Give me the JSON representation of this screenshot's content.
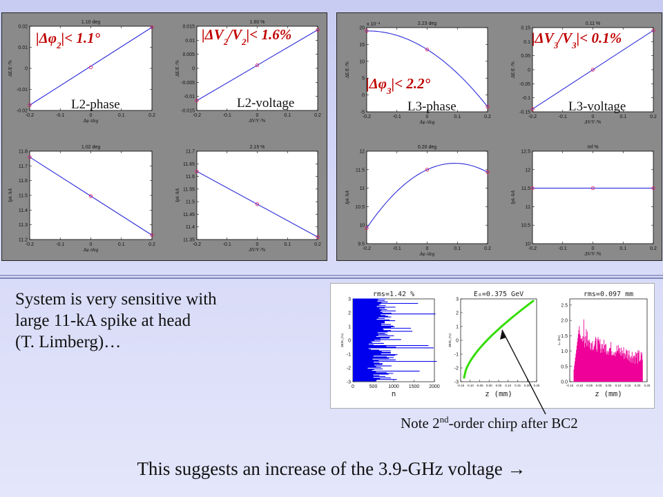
{
  "chart_data": [
    {
      "id": "p1",
      "type": "line",
      "title": "1.10 deg",
      "xlabel": "Δφ /deg",
      "ylabel": "ΔE/E /%",
      "xlim": [
        -0.2,
        0.2
      ],
      "ylim": [
        -0.02,
        0.02
      ],
      "xticks": [
        "-0.2",
        "-0.1",
        "0",
        "0.1",
        "0.2"
      ],
      "yticks": [
        "-0.02",
        "-0.01",
        "0",
        "0.01",
        "0.02"
      ],
      "points": {
        "x": [
          -0.2,
          0,
          0.2
        ],
        "y": [
          -0.0175,
          0.0005,
          0.0195
        ]
      },
      "line": {
        "x": [
          -0.2,
          0.2
        ],
        "y": [
          -0.0175,
          0.0195
        ]
      },
      "label": "L2-phase",
      "annotation": {
        "lead": "|Δ",
        "sym": "φ",
        "sub": "2",
        "tail": "|< 1.1°"
      }
    },
    {
      "id": "p2",
      "type": "line",
      "title": "1.60 %",
      "xlabel": "ΔV/V /%",
      "ylabel": "ΔE/E /%",
      "xlim": [
        -0.2,
        0.2
      ],
      "ylim": [
        -0.015,
        0.015
      ],
      "xticks": [
        "-0.2",
        "-0.1",
        "0",
        "0.1",
        "0.2"
      ],
      "yticks": [
        "-0.015",
        "-0.01",
        "-0.005",
        "0",
        "0.005",
        "0.01",
        "0.015"
      ],
      "points": {
        "x": [
          -0.2,
          0,
          0.2
        ],
        "y": [
          -0.0115,
          0.0011,
          0.0137
        ]
      },
      "line": {
        "x": [
          -0.2,
          0.2
        ],
        "y": [
          -0.0115,
          0.0137
        ]
      },
      "label": "L2-voltage",
      "annotation": {
        "lead": "|Δ",
        "sym": "V",
        "sub": "2",
        "mid": "/",
        "sym2": "V",
        "sub2": "2",
        "tail": "|< 1.6%"
      }
    },
    {
      "id": "p3",
      "type": "line",
      "title": "2.23 deg",
      "xlabel": "Δφ /deg",
      "ylabel": "ΔE/E /%",
      "sci": "x 10⁻³",
      "xlim": [
        -0.2,
        0.2
      ],
      "ylim": [
        -5,
        20
      ],
      "xticks": [
        "-0.2",
        "-0.1",
        "0",
        "0.1",
        "0.2"
      ],
      "yticks": [
        "-5",
        "0",
        "5",
        "10",
        "15",
        "20"
      ],
      "points": {
        "x": [
          -0.2,
          0,
          0.2
        ],
        "y": [
          19,
          13.5,
          -3.5
        ]
      },
      "curve": "quadratic",
      "label": "L3-phase",
      "annotation": {
        "lead": "|Δ",
        "sym": "φ",
        "sub": "3",
        "tail": "|< 2.2°"
      }
    },
    {
      "id": "p4",
      "type": "line",
      "title": "0.11 %",
      "xlabel": "ΔV/V /%",
      "ylabel": "ΔE/E /%",
      "xlim": [
        -0.2,
        0.2
      ],
      "ylim": [
        -0.15,
        0.15
      ],
      "xticks": [
        "-0.2",
        "-0.1",
        "0",
        "0.1",
        "0.2"
      ],
      "yticks": [
        "-0.15",
        "-0.1",
        "-0.05",
        "0",
        "0.05",
        "0.1",
        "0.15"
      ],
      "points": {
        "x": [
          -0.2,
          0,
          0.2
        ],
        "y": [
          -0.14,
          0,
          0.14
        ]
      },
      "line": {
        "x": [
          -0.2,
          0.2
        ],
        "y": [
          -0.14,
          0.14
        ]
      },
      "label": "L3-voltage",
      "annotation": {
        "lead": "|Δ",
        "sym": "V",
        "sub": "3",
        "mid": "/",
        "sym2": "V",
        "sub2": "3",
        "tail": "|< 0.1%"
      }
    },
    {
      "id": "p5",
      "type": "line",
      "title": "1.02 deg",
      "xlabel": "Δφ /deg",
      "ylabel": "Ipk /kA",
      "xlim": [
        -0.2,
        0.2
      ],
      "ylim": [
        11.2,
        11.8
      ],
      "xticks": [
        "-0.2",
        "-0.1",
        "0",
        "0.1",
        "0.2"
      ],
      "yticks": [
        "11.2",
        "11.3",
        "11.4",
        "11.5",
        "11.6",
        "11.7",
        "11.8"
      ],
      "points": {
        "x": [
          -0.2,
          0,
          0.2
        ],
        "y": [
          11.76,
          11.495,
          11.23
        ]
      },
      "line": {
        "x": [
          -0.2,
          0.2
        ],
        "y": [
          11.76,
          11.23
        ]
      }
    },
    {
      "id": "p6",
      "type": "line",
      "title": "2.15 %",
      "xlabel": "ΔV/V /%",
      "ylabel": "Ipk /kA",
      "xlim": [
        -0.2,
        0.2
      ],
      "ylim": [
        11.35,
        11.7
      ],
      "xticks": [
        "-0.2",
        "-0.1",
        "0",
        "0.1",
        "0.2"
      ],
      "yticks": [
        "11.35",
        "11.4",
        "11.45",
        "11.5",
        "11.55",
        "11.6",
        "11.65",
        "11.7"
      ],
      "points": {
        "x": [
          -0.2,
          0,
          0.2
        ],
        "y": [
          11.62,
          11.49,
          11.36
        ]
      },
      "line": {
        "x": [
          -0.2,
          0.2
        ],
        "y": [
          11.62,
          11.36
        ]
      }
    },
    {
      "id": "p7",
      "type": "line",
      "title": "0.20 deg",
      "xlabel": "Δφ /deg",
      "ylabel": "Ipk /kA",
      "xlim": [
        -0.2,
        0.2
      ],
      "ylim": [
        9.5,
        12
      ],
      "xticks": [
        "-0.2",
        "-0.1",
        "0",
        "0.1",
        "0.2"
      ],
      "yticks": [
        "9.5",
        "10",
        "10.5",
        "11",
        "11.5",
        "12"
      ],
      "points": {
        "x": [
          -0.2,
          0,
          0.2
        ],
        "y": [
          9.92,
          11.5,
          11.43
        ]
      },
      "curve": "quadratic"
    },
    {
      "id": "p8",
      "type": "line",
      "title": "Inf %",
      "xlabel": "ΔV/V /%",
      "ylabel": "Ipk /kA",
      "xlim": [
        -0.2,
        0.2
      ],
      "ylim": [
        10,
        12.5
      ],
      "xticks": [
        "-0.2",
        "-0.1",
        "0",
        "0.1",
        "0.2"
      ],
      "yticks": [
        "10",
        "10.5",
        "11",
        "11.5",
        "12",
        "12.5"
      ],
      "points": {
        "x": [
          -0.2,
          0,
          0.2
        ],
        "y": [
          11.5,
          11.5,
          11.5
        ]
      },
      "line": {
        "x": [
          -0.2,
          0.2
        ],
        "y": [
          11.5,
          11.5
        ]
      }
    },
    {
      "id": "i1",
      "type": "bar",
      "title": "rms=1.42 %",
      "xlabel": "n",
      "ylabel": "dE/E₀ (%)",
      "xlim": [
        0,
        2000
      ],
      "ylim": [
        -3,
        3
      ],
      "xticks": [
        "0",
        "500",
        "1000",
        "1500",
        "2000"
      ],
      "yticks": [
        "-3",
        "-2",
        "-1",
        "0",
        "1",
        "2",
        "3"
      ],
      "color": "#0000ee"
    },
    {
      "id": "i2",
      "type": "scatter",
      "title": "E₀=0.375 GeV",
      "xlabel": "z (mm)",
      "ylabel": "dE/E₀ (%)",
      "ylim": [
        -3,
        3
      ],
      "yticks": [
        "-3",
        "-2",
        "-1",
        "0",
        "1",
        "2",
        "3"
      ],
      "xticks": [
        "-0.15",
        "-0.10",
        "-0.05",
        "0.00",
        "0.05",
        "0.10",
        "0.15",
        "0.20",
        "0.25"
      ],
      "color": "#33dd00"
    },
    {
      "id": "i3",
      "type": "bar",
      "title": "rms=0.097 mm",
      "xlabel": "z (mm)",
      "ylabel": "Iₚₖ (kA)",
      "ylim": [
        0,
        2.7
      ],
      "yticks": [
        "0.0",
        "0.5",
        "1.0",
        "1.5",
        "2.0",
        "2.5"
      ],
      "xticks": [
        "-0.15",
        "-0.10",
        "-0.05",
        "0.00",
        "0.05",
        "0.10",
        "0.15",
        "0.20",
        "0.25"
      ],
      "color": "#ee0099"
    }
  ],
  "text": {
    "system_lines": [
      "System is very sensitive with",
      "large 11-kA spike at head",
      "(T. Limberg)…"
    ],
    "note_pre": "Note 2",
    "note_sup": "nd",
    "note_post": "-order chirp after BC2",
    "suggest": "This suggests an increase of the 3.9-GHz voltage →"
  },
  "colors": {
    "line": "#2a2ad8",
    "marker": "#e0206a",
    "annotation": "#c00000"
  }
}
